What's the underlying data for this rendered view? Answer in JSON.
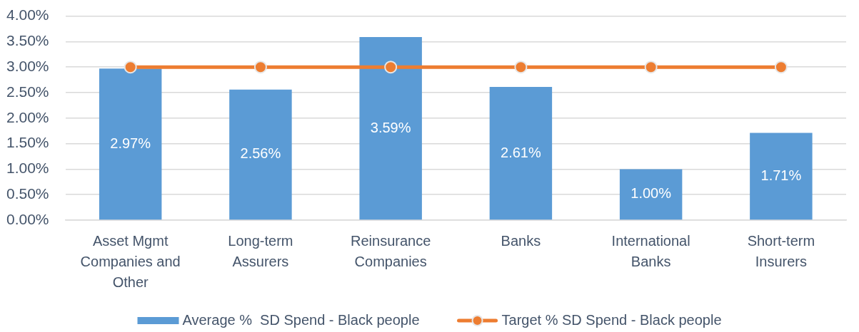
{
  "chart_data": {
    "type": "bar",
    "categories": [
      "Asset Mgmt Companies and Other",
      "Long-term Assurers",
      "Reinsurance Companies",
      "Banks",
      "International Banks",
      "Short-term Insurers"
    ],
    "series": [
      {
        "name": "Average %  SD Spend - Black people",
        "color": "#5b9bd5",
        "values": [
          2.97,
          2.56,
          3.59,
          2.61,
          1.0,
          1.71
        ],
        "value_labels": [
          "2.97%",
          "2.56%",
          "3.59%",
          "2.61%",
          "1.00%",
          "1.71%"
        ]
      },
      {
        "name": "Target % SD Spend - Black people",
        "type": "line",
        "color": "#ed7d31",
        "marker": "circle",
        "values": [
          3,
          3,
          3,
          3,
          3,
          3
        ]
      }
    ],
    "ylim": [
      0,
      4
    ],
    "yticks": [
      {
        "value": 0,
        "label": "0.00%"
      },
      {
        "value": 0.5,
        "label": "0.50%"
      },
      {
        "value": 1,
        "label": "1.00%"
      },
      {
        "value": 1.5,
        "label": "1.50%"
      },
      {
        "value": 2,
        "label": "2.00%"
      },
      {
        "value": 2.5,
        "label": "2.50%"
      },
      {
        "value": 3,
        "label": "3.00%"
      },
      {
        "value": 3.5,
        "label": "3.50%"
      },
      {
        "value": 4,
        "label": "4.00%"
      }
    ],
    "grid": "y",
    "legend": "bottom"
  }
}
